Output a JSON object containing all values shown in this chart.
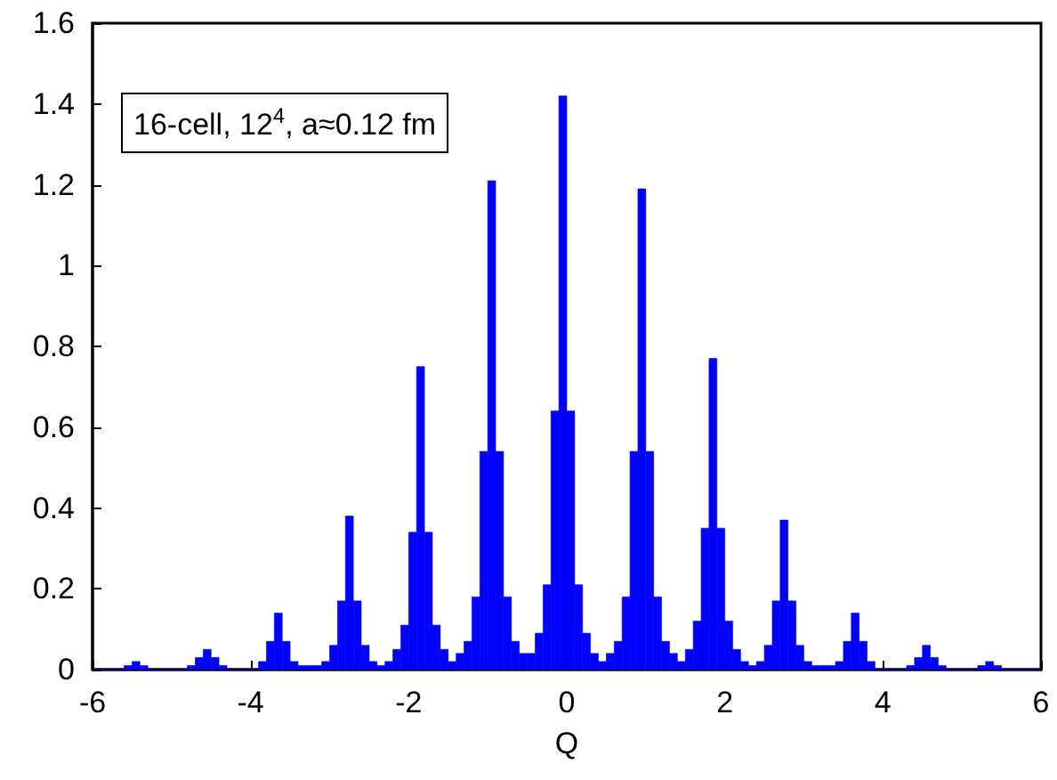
{
  "chart_data": {
    "type": "histogram",
    "xlabel": "Q",
    "color": "#0000ff",
    "annotations": [
      "16-cell, 12$^{4}$, a≈0.12 fm"
    ],
    "bins": [
      -6,
      -5.9,
      -5.8,
      -5.7,
      -5.6,
      -5.5,
      -5.4,
      -5.3,
      -5.2,
      -5.1,
      -5,
      -4.9,
      -4.8,
      -4.7,
      -4.6,
      -4.5,
      -4.4,
      -4.3,
      -4.2,
      -4.1,
      -4,
      -3.9,
      -3.8,
      -3.7,
      -3.6,
      -3.5,
      -3.4,
      -3.3,
      -3.2,
      -3.1,
      -3,
      -2.9,
      -2.8,
      -2.7,
      -2.6,
      -2.5,
      -2.4,
      -2.3,
      -2.2,
      -2.1,
      -2,
      -1.9,
      -1.8,
      -1.7,
      -1.6,
      -1.5,
      -1.4,
      -1.3,
      -1.2,
      -1.1,
      -1,
      -0.9,
      -0.8,
      -0.7,
      -0.6,
      -0.5,
      -0.4,
      -0.3,
      -0.2,
      -0.1,
      0,
      0.1,
      0.2,
      0.3,
      0.4,
      0.5,
      0.6,
      0.7,
      0.8,
      0.9,
      1,
      1.1,
      1.2,
      1.3,
      1.4,
      1.5,
      1.6,
      1.7,
      1.8,
      1.9,
      2,
      2.1,
      2.2,
      2.3,
      2.4,
      2.5,
      2.6,
      2.7,
      2.8,
      2.9,
      3,
      3.1,
      3.2,
      3.3,
      3.4,
      3.5,
      3.6,
      3.7,
      3.8,
      3.9,
      4,
      4.1,
      4.2,
      4.3,
      4.4,
      4.5,
      4.6,
      4.7,
      4.8,
      4.9,
      5,
      5.1,
      5.2,
      5.3,
      5.4,
      5.5,
      5.6,
      5.7,
      5.8,
      5.9,
      6
    ],
    "values": [
      0,
      0,
      0,
      0,
      0.01,
      0.02,
      0.01,
      0,
      0,
      0,
      0,
      0,
      0.01,
      0.03,
      0.05,
      0.03,
      0.01,
      0,
      0,
      0,
      0,
      0.02,
      0.07,
      0.14,
      0.07,
      0.02,
      0.01,
      0.01,
      0.01,
      0.02,
      0.06,
      0.17,
      0.38,
      0.17,
      0.06,
      0.02,
      0.01,
      0.02,
      0.05,
      0.11,
      0.34,
      0.75,
      0.34,
      0.11,
      0.05,
      0.02,
      0.04,
      0.07,
      0.18,
      0.54,
      1.21,
      0.54,
      0.18,
      0.07,
      0.04,
      0.04,
      0.09,
      0.21,
      0.64,
      1.42,
      0.64,
      0.21,
      0.09,
      0.04,
      0.02,
      0.04,
      0.07,
      0.18,
      0.54,
      1.19,
      0.54,
      0.18,
      0.07,
      0.04,
      0.02,
      0.05,
      0.12,
      0.35,
      0.77,
      0.35,
      0.12,
      0.05,
      0.02,
      0.01,
      0.02,
      0.06,
      0.17,
      0.37,
      0.17,
      0.06,
      0.02,
      0.01,
      0.01,
      0.01,
      0.02,
      0.07,
      0.14,
      0.07,
      0.02,
      0,
      0,
      0,
      0,
      0.01,
      0.03,
      0.06,
      0.03,
      0.01,
      0,
      0,
      0,
      0,
      0.01,
      0.02,
      0.01,
      0,
      0,
      0,
      0,
      0
    ],
    "xlim": [
      -6,
      6
    ],
    "xticks": [
      -6,
      -4,
      -2,
      0,
      2,
      4,
      6
    ],
    "ylim": [
      0,
      1.6
    ],
    "yticks": [
      0,
      0.2,
      0.4,
      0.6,
      0.8,
      1,
      1.2,
      1.4,
      1.6
    ],
    "grid": false
  }
}
